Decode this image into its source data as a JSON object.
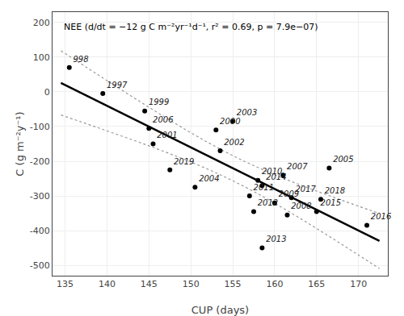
{
  "chart_data": {
    "type": "scatter",
    "annotation": "NEE (d/dt = −12 g C m⁻²yr⁻¹d⁻¹, r² = 0.69, p = 7.9e−07)",
    "xlabel": "CUP (days)",
    "ylabel": "C (g m⁻²y⁻¹)",
    "xlim": [
      133.5,
      173.5
    ],
    "ylim": [
      -530,
      230
    ],
    "xticks": [
      135,
      140,
      145,
      150,
      155,
      160,
      165,
      170
    ],
    "yticks": [
      -500,
      -400,
      -300,
      -200,
      -100,
      0,
      100,
      200
    ],
    "grid": true,
    "series": [
      {
        "type": "scatter",
        "marker": "circle",
        "color": "#000000",
        "x": [
          135.5,
          139.5,
          144.5,
          145.0,
          145.5,
          147.5,
          150.5,
          153.0,
          155.0,
          153.5,
          157.0,
          158.0,
          158.5,
          157.5,
          160.0,
          161.0,
          158.5,
          161.5,
          162.0,
          165.0,
          165.5,
          166.5,
          171.0
        ],
        "values": [
          70,
          -5,
          -55,
          -105,
          -150,
          -225,
          -275,
          -110,
          -85,
          -170,
          -300,
          -255,
          -270,
          -345,
          -320,
          -240,
          -450,
          -355,
          -305,
          -345,
          -310,
          -220,
          -385
        ],
        "labels": [
          "998",
          "1997",
          "1999",
          "2006",
          "2001",
          "2019",
          "2004",
          "2000",
          "2003",
          "2002",
          "2011",
          "2010",
          "2014",
          "2012",
          "2009",
          "2007",
          "2013",
          "2008",
          "2017",
          "2015",
          "2018",
          "2005",
          "2016"
        ]
      },
      {
        "type": "line",
        "line_style": "solid",
        "color": "#000000",
        "x": [
          134.5,
          172.5
        ],
        "values": [
          26,
          -430
        ]
      },
      {
        "type": "line",
        "line_style": "dotted",
        "color": "#999999",
        "x": [
          134.5,
          137.5,
          140,
          142.5,
          145,
          147.5,
          150,
          152.5,
          155,
          157.5,
          160,
          162.5,
          165,
          167.5,
          170,
          172.5
        ],
        "values": [
          118.66,
          71.48,
          32.44,
          -6.23,
          -44.37,
          -81.68,
          -117.75,
          -151.98,
          -183.72,
          -212.61,
          -238.89,
          -263.18,
          -286.1,
          -308.13,
          -329.56,
          -350.59
        ]
      },
      {
        "type": "line",
        "line_style": "dotted",
        "color": "#999999",
        "x": [
          134.5,
          137.5,
          140,
          142.5,
          145,
          147.5,
          150,
          152.5,
          155,
          157.5,
          160,
          162.5,
          165,
          167.5,
          170,
          172.5
        ],
        "values": [
          -66.66,
          -91.48,
          -112.44,
          -133.77,
          -155.63,
          -178.32,
          -202.25,
          -228.02,
          -256.28,
          -287.39,
          -321.11,
          -356.82,
          -393.9,
          -431.87,
          -470.44,
          -509.41
        ]
      }
    ]
  }
}
